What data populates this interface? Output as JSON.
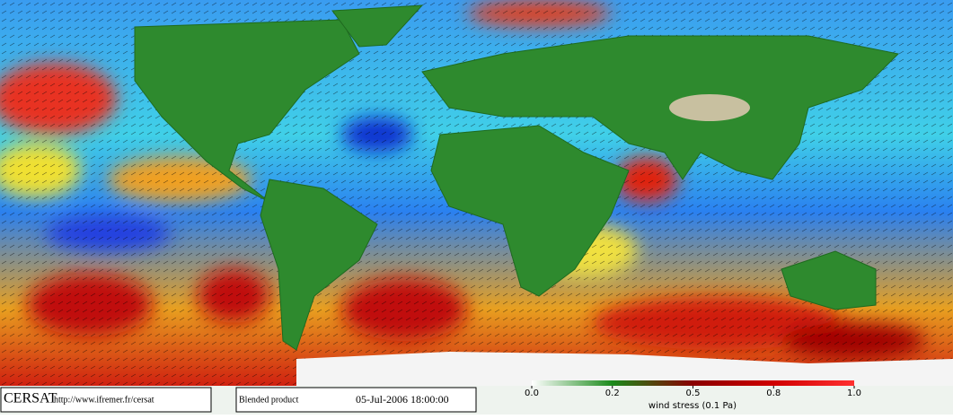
{
  "footer": {
    "logo": "CERSAT",
    "url": "http://www.ifremer.fr/cersat",
    "product": "Blended product",
    "date": "05-Jul-2006 18:00:00"
  },
  "colorbar": {
    "label": "wind stress (0.1 Pa)",
    "ticks": [
      {
        "value": 0,
        "label": "0.0"
      },
      0.2,
      0.5,
      0.8,
      {
        "value": 1,
        "label": "1.0"
      }
    ]
  }
}
